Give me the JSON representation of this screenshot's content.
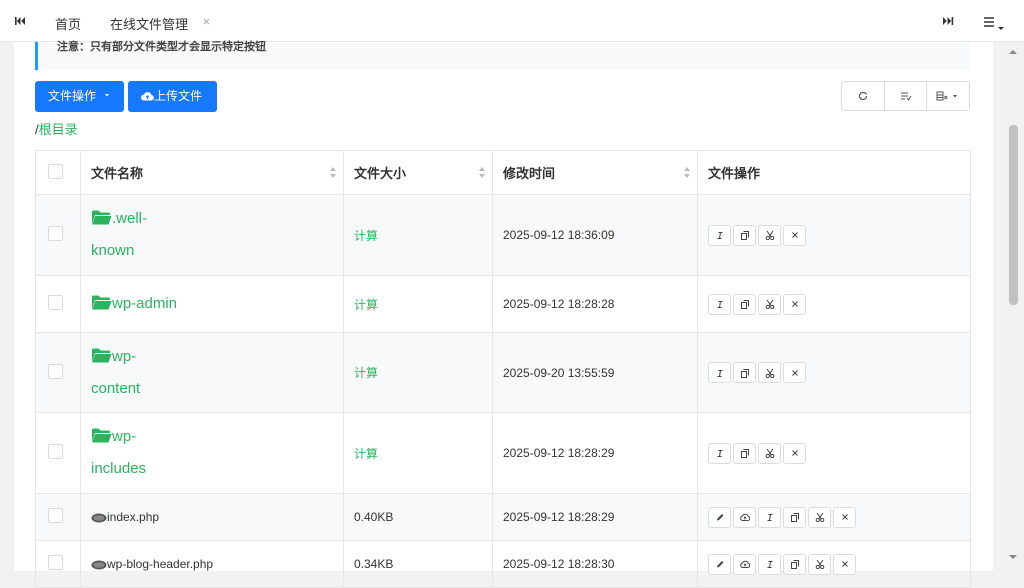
{
  "tabs": {
    "home": "首页",
    "current": "在线文件管理"
  },
  "notice": "注意：只有部分文件类型才会显示特定按钮",
  "toolbar": {
    "file_ops": "文件操作",
    "upload": "上传文件"
  },
  "breadcrumb": {
    "separator": "/",
    "root": "根目录"
  },
  "table": {
    "headers": [
      "文件名称",
      "文件大小",
      "修改时间",
      "文件操作"
    ],
    "rows": [
      [
        ".well-known",
        "计算",
        "2025-09-12 18:36:09"
      ],
      [
        "wp-admin",
        "计算",
        "2025-09-12 18:28:28"
      ],
      [
        "wp-content",
        "计算",
        "2025-09-20 13:55:59"
      ],
      [
        "wp-includes",
        "计算",
        "2025-09-12 18:28:29"
      ],
      [
        "index.php",
        "0.40KB",
        "2025-09-12 18:28:29"
      ],
      [
        "wp-blog-header.php",
        "0.34KB",
        "2025-09-12 18:28:30"
      ]
    ]
  }
}
